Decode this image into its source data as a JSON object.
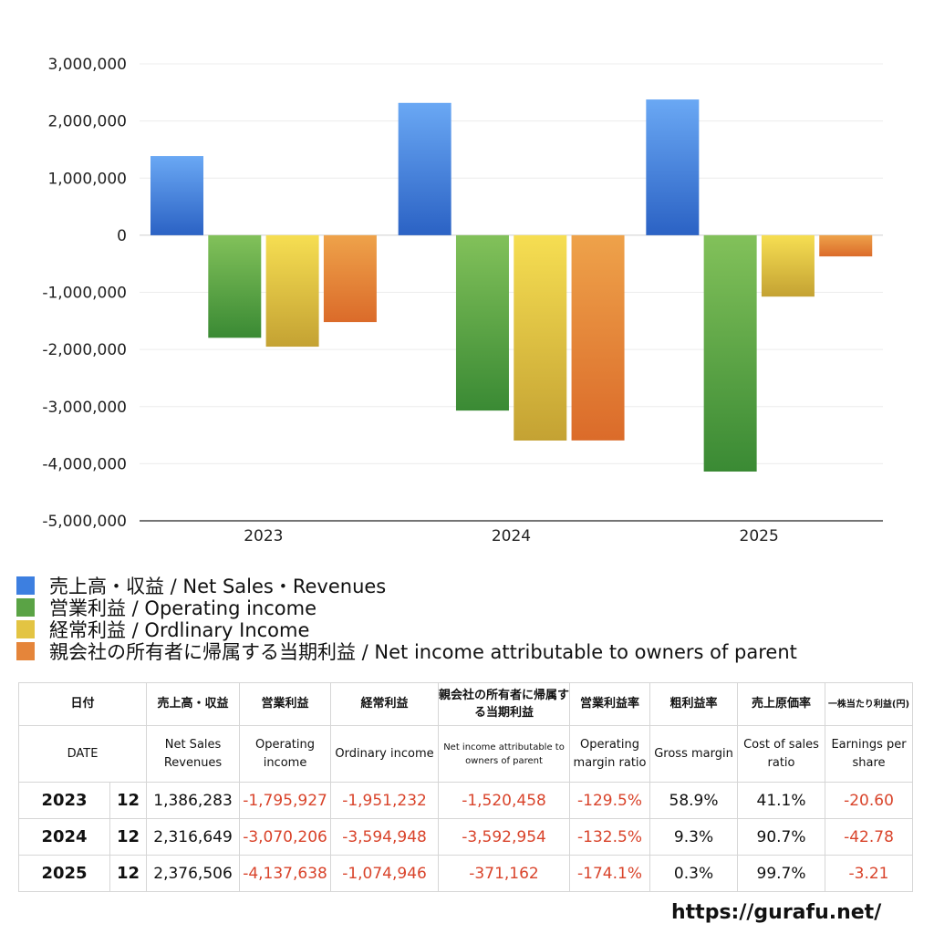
{
  "chart_data": {
    "type": "bar",
    "categories": [
      "2023",
      "2024",
      "2025"
    ],
    "ylim": [
      -5000000,
      3000000
    ],
    "yticks": [
      "3,000,000",
      "2,000,000",
      "1,000,000",
      "0",
      "-1,000,000",
      "-2,000,000",
      "-3,000,000",
      "-4,000,000",
      "-5,000,000"
    ],
    "grid": true,
    "legend_position": "bottom",
    "series": [
      {
        "name": "売上高・収益 / Net Sales・Revenues",
        "color_top": "#6aa8f4",
        "color_bottom": "#2b62c4",
        "color": "#3d7fe0",
        "values": [
          1386283,
          2316649,
          2376506
        ]
      },
      {
        "name": "営業利益 / Operating income",
        "color_top": "#82c15a",
        "color_bottom": "#3a8a34",
        "color": "#5aa345",
        "values": [
          -1795927,
          -3070206,
          -4137638
        ]
      },
      {
        "name": "経常利益 / Ordlinary Income",
        "color_top": "#f6de52",
        "color_bottom": "#c4a233",
        "color": "#e3c443",
        "values": [
          -1951232,
          -3594948,
          -1074946
        ]
      },
      {
        "name": "親会社の所有者に帰属する当期利益 / Net income attributable to owners of parent",
        "color_top": "#eea24a",
        "color_bottom": "#db6b2a",
        "color": "#e5853a",
        "values": [
          -1520458,
          -3592954,
          -371162
        ]
      }
    ]
  },
  "table": {
    "headers_jp": [
      "日付",
      "売上高・収益",
      "営業利益",
      "経常利益",
      "親会社の所有者に帰属する当期利益",
      "営業利益率",
      "粗利益率",
      "売上原価率",
      "一株当たり利益(円)"
    ],
    "headers_en": [
      "DATE",
      "Net Sales Revenues",
      "Operating income",
      "Ordinary income",
      "Net income attributable to owners of parent",
      "Operating margin ratio",
      "Gross margin",
      "Cost of sales ratio",
      "Earnings per share"
    ],
    "rows": [
      {
        "year": "2023",
        "month": "12",
        "net_sales": "1,386,283",
        "operating_income": "-1,795,927",
        "ordinary_income": "-1,951,232",
        "net_income": "-1,520,458",
        "operating_margin": "-129.5%",
        "gross_margin": "58.9%",
        "cost_of_sales": "41.1%",
        "eps": "-20.60"
      },
      {
        "year": "2024",
        "month": "12",
        "net_sales": "2,316,649",
        "operating_income": "-3,070,206",
        "ordinary_income": "-3,594,948",
        "net_income": "-3,592,954",
        "operating_margin": "-132.5%",
        "gross_margin": "9.3%",
        "cost_of_sales": "90.7%",
        "eps": "-42.78"
      },
      {
        "year": "2025",
        "month": "12",
        "net_sales": "2,376,506",
        "operating_income": "-4,137,638",
        "ordinary_income": "-1,074,946",
        "net_income": "-371,162",
        "operating_margin": "-174.1%",
        "gross_margin": "0.3%",
        "cost_of_sales": "99.7%",
        "eps": "-3.21"
      }
    ]
  },
  "footer": {
    "url": "https://gurafu.net/"
  }
}
